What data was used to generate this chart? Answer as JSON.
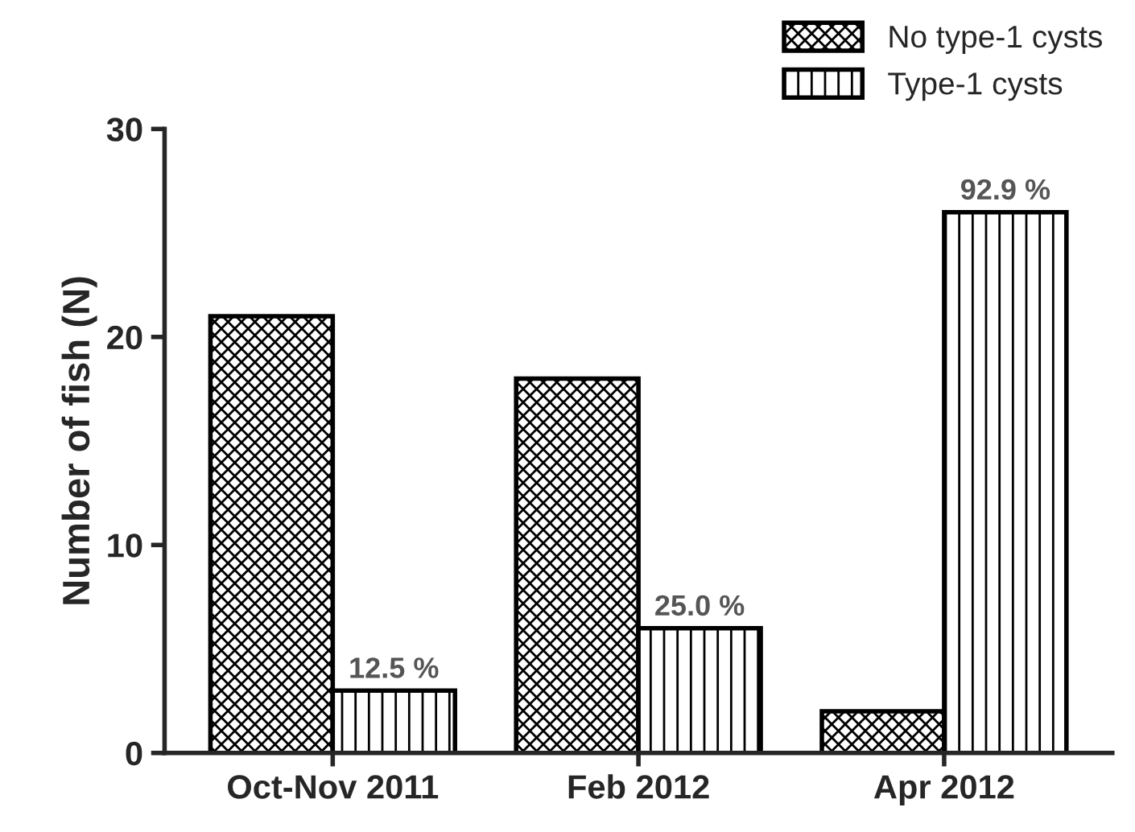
{
  "chart_data": {
    "type": "bar",
    "ylabel": "Number of fish (N)",
    "categories": [
      "Oct-Nov 2011",
      "Feb 2012",
      "Apr 2012"
    ],
    "series": [
      {
        "name": "No type-1 cysts",
        "color": "#000000",
        "values": [
          21,
          18,
          2
        ]
      },
      {
        "name": "Type-1 cysts",
        "color": "#000000",
        "values": [
          3,
          6,
          26
        ]
      }
    ],
    "annotations": [
      {
        "text": "12.5 %",
        "x": "Oct-Nov 2011",
        "y": 3
      },
      {
        "text": "25.0 %",
        "x": "Feb 2012",
        "y": 6
      },
      {
        "text": "92.9 %",
        "x": "Apr 2012",
        "y": 26
      }
    ],
    "ylim": [
      0,
      30
    ],
    "yticks": [
      0,
      10,
      20,
      30
    ],
    "grid": false,
    "legend": "top right"
  }
}
